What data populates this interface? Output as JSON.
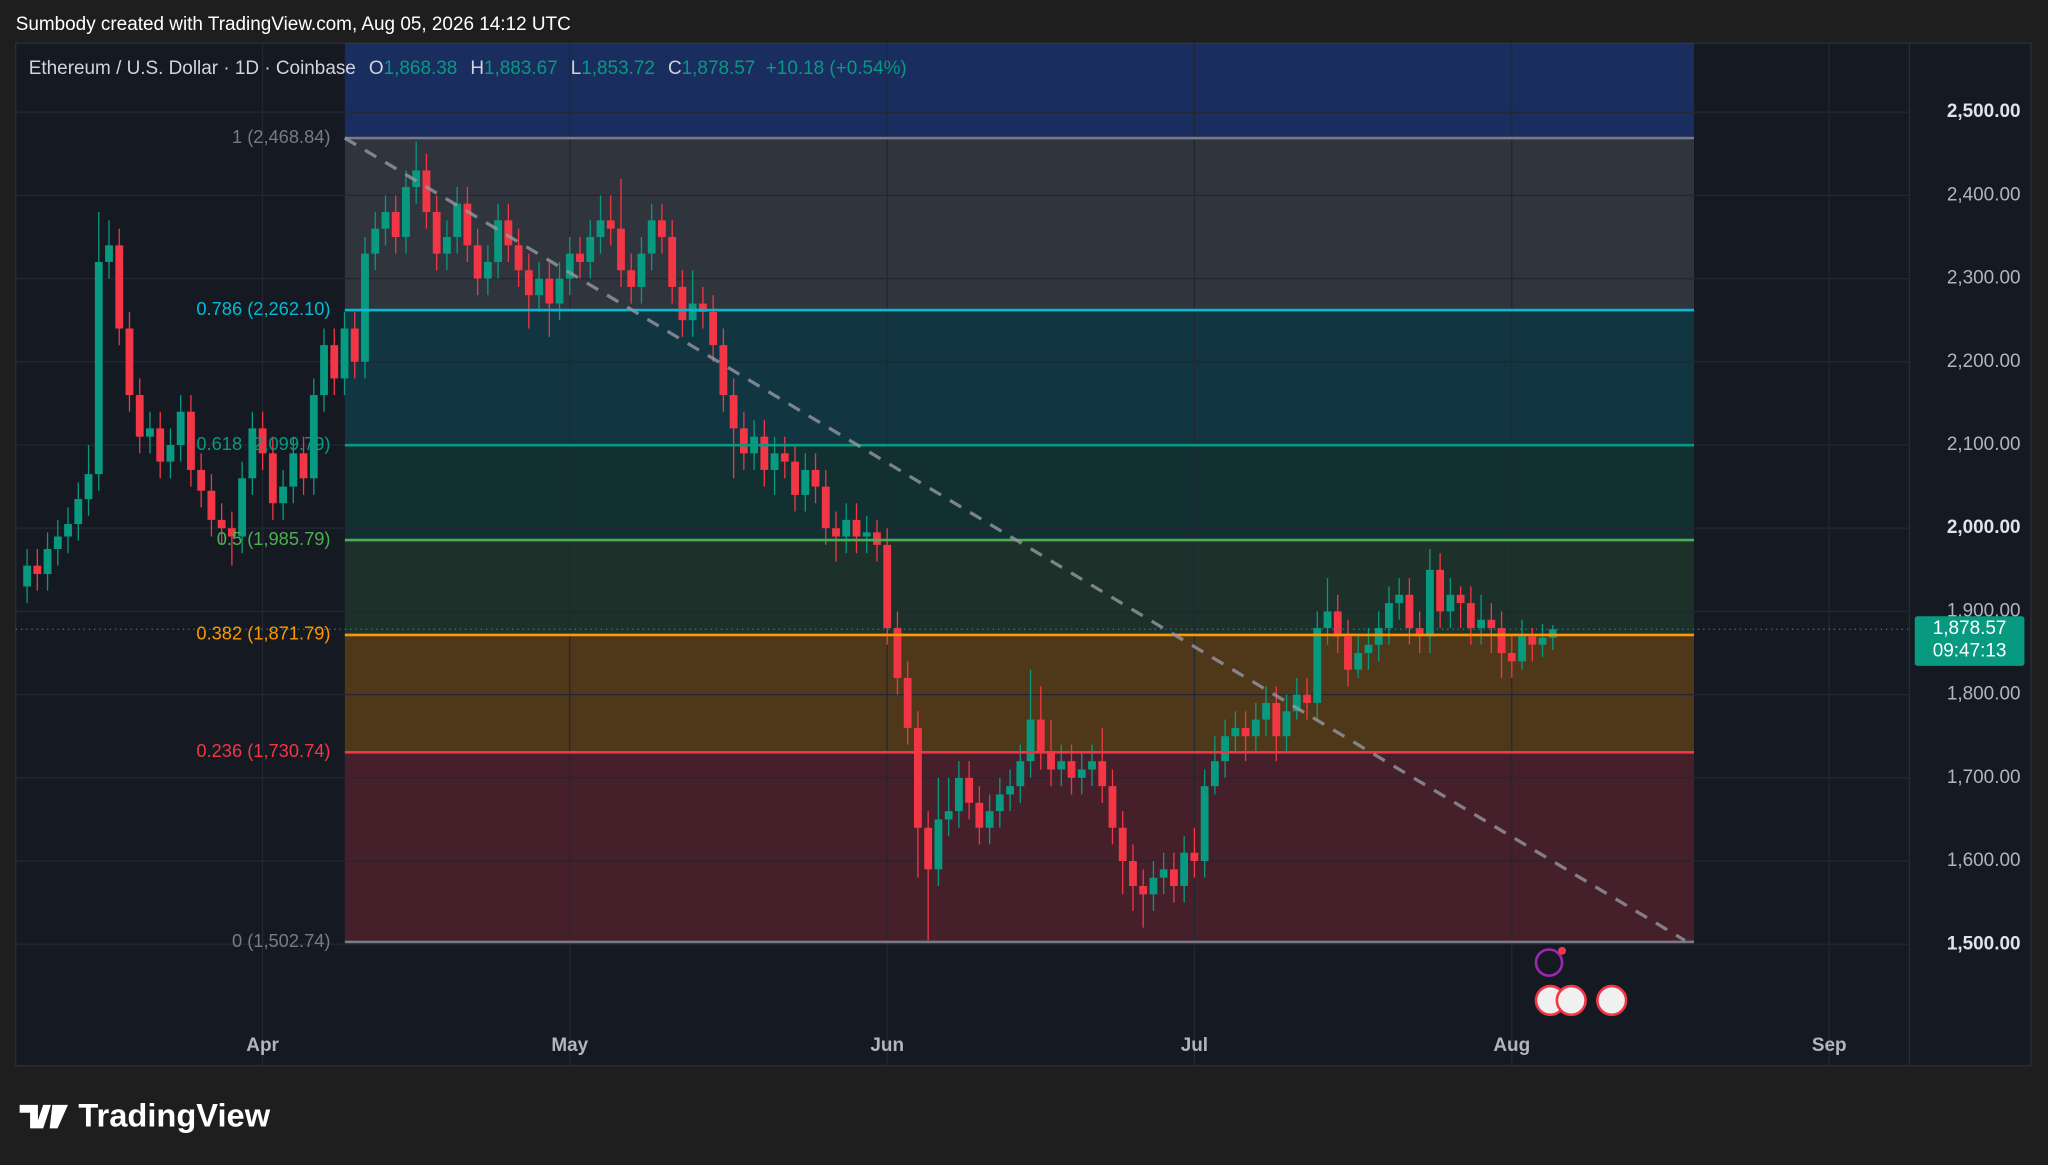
{
  "header": {
    "caption": "Sumbody created with TradingView.com, Aug 05, 2026 14:12 UTC"
  },
  "footer": {
    "logo_text": "TradingView"
  },
  "chart_data": {
    "type": "candlestick",
    "legend": {
      "symbol": "Ethereum / U.S. Dollar · 1D · Coinbase",
      "open_key": "O",
      "open": "1,868.38",
      "high_key": "H",
      "high": "1,883.67",
      "low_key": "L",
      "low": "1,853.72",
      "close_key": "C",
      "close": "1,878.57",
      "change": "+10.18 (+0.54%)"
    },
    "categories": [
      null,
      null,
      null,
      null,
      null,
      null,
      null,
      null,
      null,
      null,
      null,
      null,
      null,
      null,
      null,
      null,
      null,
      null,
      null,
      null,
      null,
      null,
      null,
      "Apr",
      null,
      null,
      null,
      null,
      null,
      null,
      null,
      null,
      null,
      null,
      null,
      null,
      null,
      null,
      null,
      null,
      null,
      null,
      null,
      null,
      null,
      null,
      null,
      null,
      null,
      null,
      null,
      null,
      null,
      "May",
      null,
      null,
      null,
      null,
      null,
      null,
      null,
      null,
      null,
      null,
      null,
      null,
      null,
      null,
      null,
      null,
      null,
      null,
      null,
      null,
      null,
      null,
      null,
      null,
      null,
      null,
      null,
      null,
      null,
      null,
      "Jun",
      null,
      null,
      null,
      null,
      null,
      null,
      null,
      null,
      null,
      null,
      null,
      null,
      null,
      null,
      null,
      null,
      null,
      null,
      null,
      null,
      null,
      null,
      null,
      null,
      null,
      null,
      null,
      null,
      null,
      "Jul",
      null,
      null,
      null,
      null,
      null,
      null,
      null,
      null,
      null,
      null,
      null,
      null,
      null,
      null,
      null,
      null,
      null,
      null,
      null,
      null,
      null,
      null,
      null,
      null,
      null,
      null,
      null,
      null,
      null,
      null,
      "Aug",
      null,
      null,
      null,
      null,
      null,
      null,
      null,
      null,
      null,
      null,
      null,
      null,
      null,
      null,
      null,
      null,
      null,
      null,
      null,
      null,
      null,
      null,
      null,
      null,
      null,
      null,
      null,
      null,
      null,
      null,
      "Sep"
    ],
    "open": [
      1930,
      1955,
      1945,
      1975,
      1990,
      2005,
      2035,
      2065,
      2320,
      2340,
      2240,
      2160,
      2110,
      2120,
      2080,
      2100,
      2140,
      2070,
      2045,
      2010,
      2000,
      1990,
      2060,
      2120,
      2090,
      2030,
      2050,
      2090,
      2060,
      2160,
      2220,
      2180,
      2240,
      2200,
      2330,
      2360,
      2380,
      2350,
      2410,
      2430,
      2380,
      2330,
      2350,
      2390,
      2340,
      2300,
      2320,
      2370,
      2340,
      2310,
      2280,
      2300,
      2270,
      2300,
      2330,
      2320,
      2350,
      2370,
      2360,
      2310,
      2290,
      2330,
      2370,
      2350,
      2290,
      2250,
      2270,
      2260,
      2220,
      2160,
      2120,
      2090,
      2110,
      2070,
      2090,
      2080,
      2040,
      2070,
      2050,
      2000,
      1990,
      2010,
      1990,
      1995,
      1980,
      1880,
      1820,
      1760,
      1640,
      1590,
      1650,
      1660,
      1700,
      1670,
      1640,
      1660,
      1680,
      1690,
      1720,
      1770,
      1730,
      1710,
      1720,
      1700,
      1710,
      1720,
      1690,
      1640,
      1600,
      1570,
      1560,
      1580,
      1590,
      1570,
      1610,
      1600,
      1690,
      1720,
      1750,
      1760,
      1750,
      1770,
      1790,
      1750,
      1780,
      1800,
      1790,
      1880,
      1900,
      1870,
      1830,
      1850,
      1860,
      1880,
      1910,
      1920,
      1880,
      1870,
      1950,
      1900,
      1920,
      1910,
      1880,
      1890,
      1880,
      1850,
      1840,
      1870,
      1860,
      1868.38,
      null,
      null,
      null,
      null,
      null,
      null,
      null,
      null,
      null,
      null,
      null,
      null,
      null,
      null,
      null,
      null,
      null,
      null,
      null,
      null,
      null,
      null,
      null,
      null,
      null,
      null,
      null
    ],
    "high": [
      1975,
      1975,
      1995,
      2010,
      2025,
      2055,
      2100,
      2380,
      2370,
      2360,
      2260,
      2180,
      2140,
      2140,
      2120,
      2160,
      2160,
      2090,
      2065,
      2030,
      2020,
      2080,
      2140,
      2140,
      2110,
      2070,
      2110,
      2110,
      2180,
      2240,
      2240,
      2260,
      2260,
      2350,
      2380,
      2400,
      2400,
      2430,
      2465,
      2450,
      2400,
      2370,
      2410,
      2410,
      2360,
      2340,
      2390,
      2390,
      2360,
      2330,
      2320,
      2320,
      2320,
      2350,
      2350,
      2370,
      2400,
      2400,
      2420,
      2330,
      2350,
      2390,
      2390,
      2370,
      2310,
      2310,
      2290,
      2280,
      2240,
      2180,
      2140,
      2130,
      2130,
      2110,
      2110,
      2100,
      2090,
      2090,
      2070,
      2020,
      2030,
      2030,
      2015,
      2010,
      2000,
      1900,
      1840,
      1780,
      1660,
      1700,
      1700,
      1720,
      1720,
      1690,
      1680,
      1700,
      1710,
      1740,
      1830,
      1810,
      1770,
      1740,
      1740,
      1730,
      1740,
      1760,
      1710,
      1660,
      1620,
      1590,
      1600,
      1610,
      1610,
      1630,
      1640,
      1710,
      1750,
      1770,
      1780,
      1780,
      1790,
      1810,
      1810,
      1800,
      1820,
      1820,
      1900,
      1940,
      1920,
      1890,
      1870,
      1880,
      1900,
      1930,
      1940,
      1940,
      1900,
      1975,
      1970,
      1940,
      1930,
      1930,
      1920,
      1910,
      1900,
      1870,
      1890,
      1880,
      1885,
      1883.67,
      null,
      null,
      null,
      null,
      null,
      null,
      null,
      null,
      null,
      null,
      null,
      null,
      null,
      null,
      null,
      null,
      null,
      null,
      null,
      null,
      null,
      null,
      null,
      null,
      null,
      null,
      null
    ],
    "low": [
      1910,
      1925,
      1925,
      1955,
      1970,
      1985,
      2015,
      2045,
      2300,
      2220,
      2140,
      2090,
      2090,
      2060,
      2060,
      2080,
      2050,
      2025,
      1990,
      1980,
      1955,
      1970,
      2040,
      2070,
      2010,
      2010,
      2030,
      2040,
      2040,
      2140,
      2160,
      2160,
      2180,
      2180,
      2310,
      2340,
      2330,
      2330,
      2390,
      2360,
      2310,
      2310,
      2330,
      2320,
      2280,
      2280,
      2300,
      2320,
      2290,
      2240,
      2260,
      2230,
      2250,
      2280,
      2300,
      2300,
      2330,
      2340,
      2290,
      2270,
      2270,
      2310,
      2330,
      2270,
      2230,
      2230,
      2240,
      2200,
      2140,
      2060,
      2070,
      2070,
      2050,
      2040,
      2060,
      2020,
      2020,
      2030,
      1980,
      1960,
      1970,
      1970,
      1970,
      1960,
      1860,
      1800,
      1740,
      1580,
      1505,
      1570,
      1630,
      1640,
      1650,
      1620,
      1620,
      1640,
      1660,
      1670,
      1700,
      1710,
      1690,
      1690,
      1680,
      1680,
      1690,
      1670,
      1620,
      1560,
      1540,
      1520,
      1540,
      1560,
      1550,
      1550,
      1580,
      1580,
      1680,
      1700,
      1730,
      1720,
      1730,
      1750,
      1720,
      1730,
      1770,
      1770,
      1770,
      1860,
      1850,
      1810,
      1820,
      1830,
      1840,
      1860,
      1890,
      1860,
      1850,
      1850,
      1880,
      1880,
      1880,
      1860,
      1860,
      1850,
      1820,
      1820,
      1830,
      1840,
      1845,
      1853.72,
      null,
      null,
      null,
      null,
      null,
      null,
      null,
      null,
      null,
      null,
      null,
      null,
      null,
      null,
      null,
      null,
      null,
      null,
      null,
      null,
      null,
      null,
      null,
      null,
      null,
      null,
      null
    ],
    "close": [
      1955,
      1945,
      1975,
      1990,
      2005,
      2035,
      2065,
      2320,
      2340,
      2240,
      2160,
      2110,
      2120,
      2080,
      2100,
      2140,
      2070,
      2045,
      2010,
      2000,
      1990,
      2060,
      2120,
      2090,
      2030,
      2050,
      2090,
      2060,
      2160,
      2220,
      2180,
      2240,
      2200,
      2330,
      2360,
      2380,
      2350,
      2410,
      2430,
      2380,
      2330,
      2350,
      2390,
      2340,
      2300,
      2320,
      2370,
      2340,
      2310,
      2280,
      2300,
      2270,
      2300,
      2330,
      2320,
      2350,
      2370,
      2360,
      2310,
      2290,
      2330,
      2370,
      2350,
      2290,
      2250,
      2270,
      2260,
      2220,
      2160,
      2120,
      2090,
      2110,
      2070,
      2090,
      2080,
      2040,
      2070,
      2050,
      2000,
      1990,
      2010,
      1990,
      1995,
      1980,
      1880,
      1820,
      1760,
      1640,
      1590,
      1650,
      1660,
      1700,
      1670,
      1640,
      1660,
      1680,
      1690,
      1720,
      1770,
      1730,
      1710,
      1720,
      1700,
      1710,
      1720,
      1690,
      1640,
      1600,
      1570,
      1560,
      1580,
      1590,
      1570,
      1610,
      1600,
      1690,
      1720,
      1750,
      1760,
      1750,
      1770,
      1790,
      1750,
      1780,
      1800,
      1790,
      1880,
      1900,
      1870,
      1830,
      1850,
      1860,
      1880,
      1910,
      1920,
      1880,
      1870,
      1950,
      1900,
      1920,
      1910,
      1880,
      1890,
      1880,
      1850,
      1840,
      1870,
      1860,
      1868.38,
      1878.57,
      null,
      null,
      null,
      null,
      null,
      null,
      null,
      null,
      null,
      null,
      null,
      null,
      null,
      null,
      null,
      null,
      null,
      null,
      null,
      null,
      null,
      null,
      null,
      null,
      null,
      null,
      null
    ],
    "up_color": "#089981",
    "down_color": "#f23645",
    "ylim": [
      1354,
      2583
    ],
    "yticks": [
      {
        "value": 1500,
        "label": "1,500.00"
      },
      {
        "value": 1600,
        "label": "1,600.00"
      },
      {
        "value": 1700,
        "label": "1,700.00"
      },
      {
        "value": 1800,
        "label": "1,800.00"
      },
      {
        "value": 1900,
        "label": "1,900.00"
      },
      {
        "value": 2000,
        "label": "2,000.00"
      },
      {
        "value": 2100,
        "label": "2,100.00"
      },
      {
        "value": 2200,
        "label": "2,200.00"
      },
      {
        "value": 2300,
        "label": "2,300.00"
      },
      {
        "value": 2400,
        "label": "2,400.00"
      },
      {
        "value": 2500,
        "label": "2,500.00"
      }
    ],
    "grid": true,
    "last_price": {
      "value": 1878.57,
      "label": "1,878.57"
    },
    "countdown": "09:47:13",
    "fib_levels": [
      {
        "label": "1 (2,468.84)",
        "value": 2468.84,
        "color": "#787b86"
      },
      {
        "label": "0.786 (2,262.10)",
        "value": 2262.1,
        "color": "#00bcd4"
      },
      {
        "label": "0.618 (2,099.79)",
        "value": 2099.79,
        "color": "#089981"
      },
      {
        "label": "0.5 (1,985.79)",
        "value": 1985.79,
        "color": "#4caf50"
      },
      {
        "label": "0.382 (1,871.79)",
        "value": 1871.79,
        "color": "#ff9800"
      },
      {
        "label": "0.236 (1,730.74)",
        "value": 1730.74,
        "color": "#f23645"
      },
      {
        "label": "0 (1,502.74)",
        "value": 1502.74,
        "color": "#787b86"
      }
    ]
  }
}
